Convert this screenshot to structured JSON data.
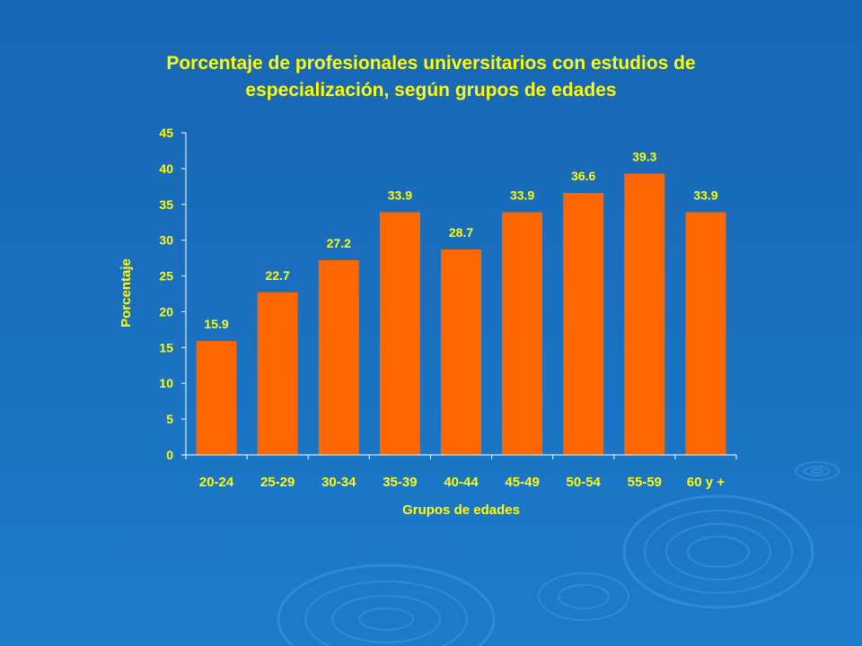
{
  "chart_data": {
    "type": "bar",
    "title_lines": [
      "Porcentaje de profesionales universitarios con estudios de",
      "especialización, según grupos de edades"
    ],
    "xlabel": "Grupos de edades",
    "ylabel": "Porcentaje",
    "ylim": [
      0,
      45
    ],
    "yticks": [
      0,
      5,
      10,
      15,
      20,
      25,
      30,
      35,
      40,
      45
    ],
    "categories": [
      "20-24",
      "25-29",
      "30-34",
      "35-39",
      "40-44",
      "45-49",
      "50-54",
      "55-59",
      "60 y +"
    ],
    "values": [
      15.9,
      22.7,
      27.2,
      33.9,
      28.7,
      33.9,
      36.6,
      39.3,
      33.9
    ],
    "data_labels": [
      "15.9",
      "22.7",
      "27.2",
      "33.9",
      "28.7",
      "33.9",
      "36.6",
      "39.3",
      "33.9"
    ],
    "grid": false,
    "legend": "none",
    "colors": {
      "bar": "#ff6600",
      "text": "#ffff00",
      "axis": "#ffffff",
      "background": "#1a6fbe"
    }
  }
}
